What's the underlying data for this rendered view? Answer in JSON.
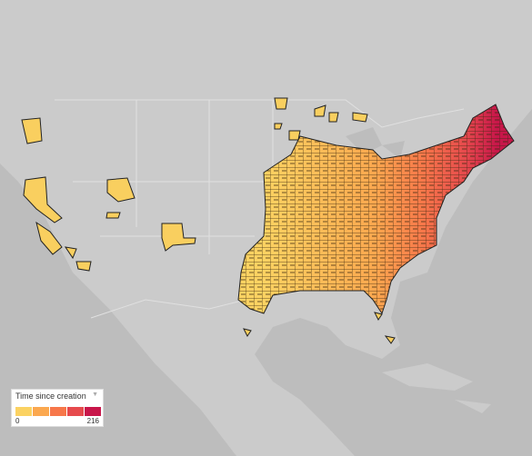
{
  "legend": {
    "title": "Time since creation",
    "min": 0,
    "max": 216,
    "colors": [
      "#fbd262",
      "#fba84f",
      "#f7774a",
      "#e64a4d",
      "#c8164a"
    ]
  }
}
